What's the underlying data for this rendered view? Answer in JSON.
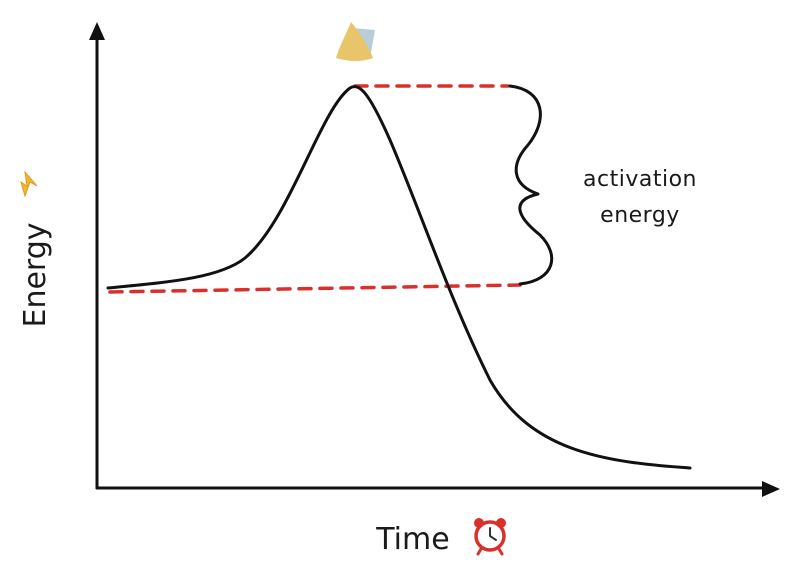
{
  "axes": {
    "x_label": "Time",
    "y_label": "Energy"
  },
  "annotation": {
    "line1": "activation",
    "line2": "energy"
  },
  "icons": {
    "x_label_icon": "alarm-clock-icon",
    "y_label_icon": "lightning-icon",
    "peak_icon": "mountain-peak-icon"
  },
  "colors": {
    "curve": "#111111",
    "dashed_line": "#d9302c",
    "axis": "#111111",
    "lightning": "#f2b631",
    "peak": "#e8c56a",
    "clock": "#d9302c"
  }
}
